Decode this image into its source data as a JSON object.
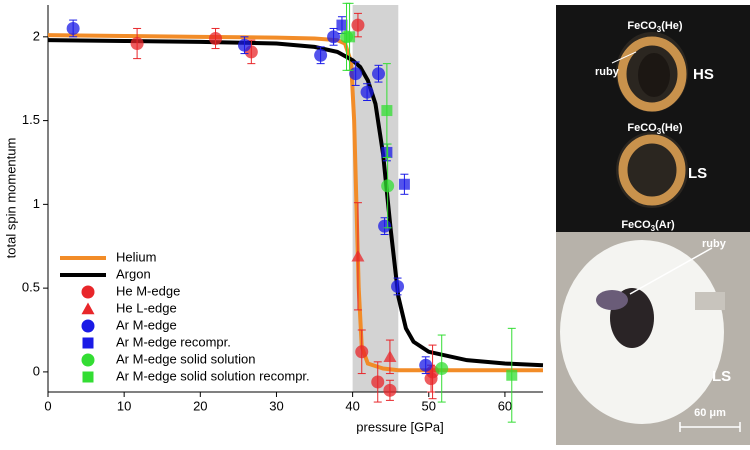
{
  "chart_data": {
    "type": "scatter",
    "xlabel": "pressure [GPa]",
    "ylabel": "total spin momentum",
    "xlim": [
      0,
      65
    ],
    "ylim": [
      -0.12,
      2.19
    ],
    "xticks": [
      0,
      10,
      20,
      30,
      40,
      50,
      60
    ],
    "yticks": [
      0,
      0.5,
      1,
      1.5,
      2
    ],
    "shade": [
      40,
      46
    ],
    "shade_color": "#d3d3d3",
    "legend": "lower left",
    "series": [
      {
        "name": "Helium",
        "kind": "line",
        "color": "#f28c28",
        "x": [
          0,
          10,
          20,
          30,
          35,
          38,
          39,
          39.8,
          40.2,
          40.5,
          40.8,
          41.2,
          42,
          44,
          46,
          50,
          55,
          60,
          65
        ],
        "values": [
          2.01,
          2.005,
          2.0,
          1.995,
          1.99,
          1.98,
          1.96,
          1.85,
          1.5,
          1.0,
          0.5,
          0.15,
          0.05,
          0.02,
          0.01,
          0.01,
          0.01,
          0.01,
          0.01
        ]
      },
      {
        "name": "Argon",
        "kind": "line",
        "color": "#000000",
        "x": [
          0,
          10,
          20,
          30,
          35,
          38,
          40,
          41,
          42,
          43,
          44,
          45,
          46,
          47,
          48,
          50,
          55,
          60,
          65
        ],
        "values": [
          1.98,
          1.975,
          1.97,
          1.96,
          1.94,
          1.91,
          1.86,
          1.82,
          1.74,
          1.6,
          1.3,
          0.85,
          0.45,
          0.26,
          0.18,
          0.12,
          0.07,
          0.05,
          0.04
        ]
      },
      {
        "name": "He M-edge",
        "marker": "circle",
        "color": "#e8262a",
        "x": [
          11.7,
          22.0,
          26.7,
          40.7,
          41.2,
          43.3,
          44.9,
          50.3,
          50.5
        ],
        "values": [
          1.96,
          1.99,
          1.91,
          2.07,
          0.12,
          -0.06,
          -0.11,
          -0.04,
          0.0
        ],
        "errors": [
          0.09,
          0.06,
          0.07,
          0.07,
          0.13,
          0.12,
          0.06,
          0.08,
          0.16
        ]
      },
      {
        "name": "He L-edge",
        "marker": "triangle",
        "color": "#e8262a",
        "x": [
          40.7,
          44.9
        ],
        "values": [
          0.69,
          0.09
        ],
        "errors": [
          0.32,
          0.1
        ]
      },
      {
        "name": "Ar M-edge",
        "marker": "circle",
        "color": "#1a1ae6",
        "x": [
          3.3,
          25.8,
          35.8,
          37.5,
          40.4,
          41.9,
          43.4,
          44.2,
          45.9,
          49.6
        ],
        "values": [
          2.05,
          1.95,
          1.89,
          2.0,
          1.78,
          1.67,
          1.78,
          0.87,
          0.51,
          0.04
        ],
        "errors": [
          0.05,
          0.05,
          0.05,
          0.05,
          0.07,
          0.05,
          0.05,
          0.05,
          0.05,
          0.05
        ]
      },
      {
        "name": "Ar M-edge recompr.",
        "marker": "square",
        "color": "#1a1ae6",
        "x": [
          38.6,
          44.5,
          46.8
        ],
        "values": [
          2.07,
          1.31,
          1.12
        ],
        "errors": [
          0.05,
          0.05,
          0.06
        ]
      },
      {
        "name": "Ar M-edge solid solution",
        "marker": "circle",
        "color": "#33dd33",
        "x": [
          39.2,
          44.6,
          51.7
        ],
        "values": [
          2.0,
          1.11,
          0.02
        ],
        "errors": [
          0.2,
          0.25,
          0.2
        ]
      },
      {
        "name": "Ar M-edge solid solution recompr.",
        "marker": "square",
        "color": "#33dd33",
        "x": [
          39.6,
          44.5,
          60.9
        ],
        "values": [
          2.0,
          1.56,
          -0.02
        ],
        "errors": [
          0.2,
          0.28,
          0.28
        ]
      }
    ]
  },
  "image_panel": {
    "labels": [
      {
        "main": "FeCO",
        "sub": "3",
        "suffix": "(He)"
      },
      {
        "main": "FeCO",
        "sub": "3",
        "suffix": "(He)"
      },
      {
        "main": "FeCO",
        "sub": "3",
        "suffix": "(Ar)"
      }
    ],
    "ruby_top": "ruby",
    "state_top": "HS",
    "state_middle": "LS",
    "ruby_bottom": "ruby",
    "state_bottom": "LS",
    "scale_bar": "60 μm"
  }
}
